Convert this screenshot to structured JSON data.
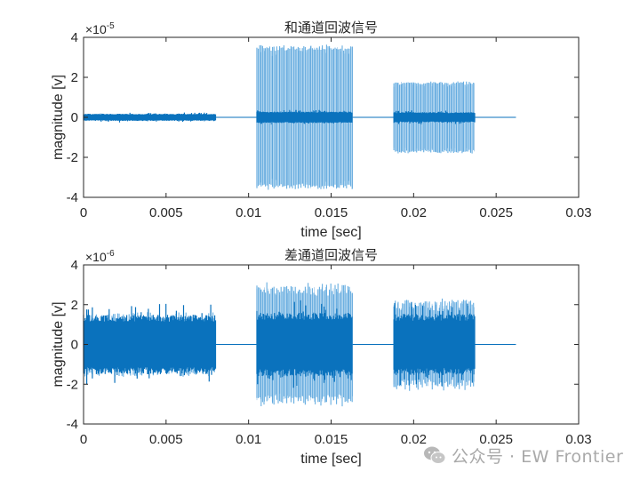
{
  "chart_data": [
    {
      "type": "line",
      "title": "和通道回波信号",
      "xlabel": "time [sec]",
      "ylabel": "magnitude [v]",
      "exponent_label": "×10",
      "exponent": "-5",
      "xlim": [
        0,
        0.03
      ],
      "ylim": [
        -4,
        4
      ],
      "xticks": [
        0,
        0.005,
        0.01,
        0.015,
        0.02,
        0.025,
        0.03
      ],
      "xtick_labels": [
        "0",
        "0.005",
        "0.01",
        "0.015",
        "0.02",
        "0.025",
        "0.03"
      ],
      "yticks": [
        -4,
        -2,
        0,
        2,
        4
      ],
      "ytick_labels": [
        "-4",
        "-2",
        "0",
        "2",
        "4"
      ],
      "grid": false,
      "signal_end": 0.0262,
      "bursts": [
        {
          "start": 0.0,
          "end": 0.008,
          "light_amp": 0.15,
          "dark_amp": 0.15,
          "noise": 0.04
        },
        {
          "start": 0.0105,
          "end": 0.0163,
          "light_amp": 3.6,
          "dark_amp": 0.25,
          "noise": 0.05
        },
        {
          "start": 0.0188,
          "end": 0.0237,
          "light_amp": 1.78,
          "dark_amp": 0.22,
          "noise": 0.05
        }
      ]
    },
    {
      "type": "line",
      "title": "差通道回波信号",
      "xlabel": "time [sec]",
      "ylabel": "magnitude [v]",
      "exponent_label": "×10",
      "exponent": "-6",
      "xlim": [
        0,
        0.03
      ],
      "ylim": [
        -4,
        4
      ],
      "xticks": [
        0,
        0.005,
        0.01,
        0.015,
        0.02,
        0.025,
        0.03
      ],
      "xtick_labels": [
        "0",
        "0.005",
        "0.01",
        "0.015",
        "0.02",
        "0.025",
        "0.03"
      ],
      "yticks": [
        -4,
        -2,
        0,
        2,
        4
      ],
      "ytick_labels": [
        "-4",
        "-2",
        "0",
        "2",
        "4"
      ],
      "grid": false,
      "signal_end": 0.0262,
      "bursts": [
        {
          "start": 0.0,
          "end": 0.008,
          "light_amp": 1.4,
          "dark_amp": 1.25,
          "noise": 0.35
        },
        {
          "start": 0.0105,
          "end": 0.0163,
          "light_amp": 2.9,
          "dark_amp": 1.35,
          "noise": 0.35
        },
        {
          "start": 0.0188,
          "end": 0.0237,
          "light_amp": 2.1,
          "dark_amp": 1.3,
          "noise": 0.35
        }
      ]
    }
  ],
  "colors": {
    "dark": "#0a72bd",
    "light": "#5ea9df",
    "axis": "#262626",
    "text": "#262626"
  },
  "watermark": {
    "text": "公众号 · EW Frontier"
  }
}
